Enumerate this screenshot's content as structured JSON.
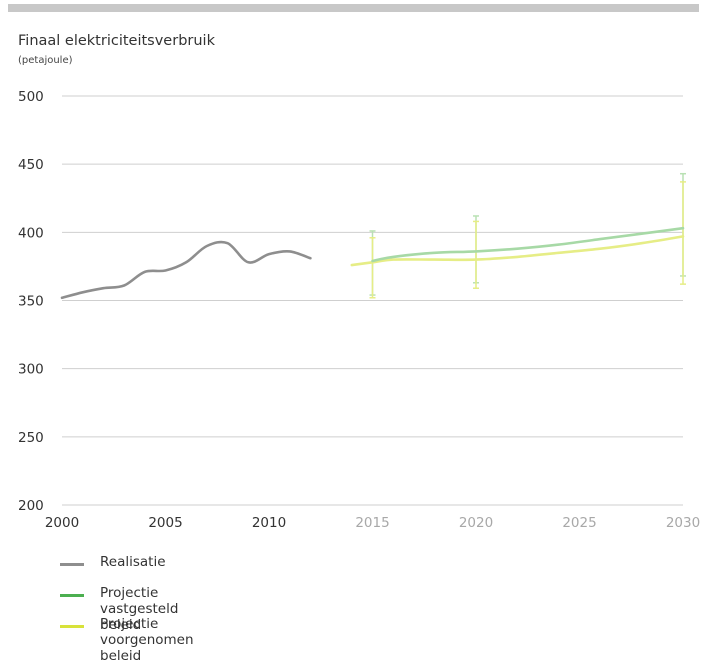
{
  "chart_data": {
    "type": "line",
    "title": "Finaal elektriciteitsverbruik",
    "subtitle": "(petajoule)",
    "ylim": [
      200,
      500
    ],
    "yticks": [
      200,
      250,
      300,
      350,
      400,
      450,
      500
    ],
    "xlim": [
      2000,
      2030
    ],
    "xticks": [
      2000,
      2005,
      2010,
      2015,
      2020,
      2025,
      2030
    ],
    "grid": true,
    "legend_position": "bottom-left",
    "series": [
      {
        "name": "Realisatie",
        "color": "#8e8e8e",
        "x": [
          2000,
          2001,
          2002,
          2003,
          2004,
          2005,
          2006,
          2007,
          2008,
          2009,
          2010,
          2011,
          2012
        ],
        "y": [
          352,
          356,
          359,
          361,
          371,
          372,
          378,
          390,
          392,
          378,
          384,
          386,
          381
        ]
      },
      {
        "name": "Projectie vastgesteld beleid",
        "color": "#a7d9a6",
        "x": [
          2015,
          2016,
          2018,
          2020,
          2022,
          2024,
          2026,
          2028,
          2030
        ],
        "y": [
          379,
          382,
          385,
          386,
          388,
          391,
          395,
          399,
          403
        ]
      },
      {
        "name": "Projectie voorgenomen beleid",
        "color": "#e6ed86",
        "x": [
          2014,
          2015,
          2016,
          2018,
          2020,
          2022,
          2024,
          2026,
          2028,
          2030
        ],
        "y": [
          376,
          378,
          380,
          380,
          380,
          382,
          385,
          388,
          392,
          397
        ]
      }
    ],
    "error_bars": [
      {
        "series": "Projectie vastgesteld beleid",
        "x": 2015,
        "low": 354,
        "high": 401
      },
      {
        "series": "Projectie voorgenomen beleid",
        "x": 2015,
        "low": 352,
        "high": 396
      },
      {
        "series": "Projectie vastgesteld beleid",
        "x": 2020,
        "low": 363,
        "high": 412
      },
      {
        "series": "Projectie voorgenomen beleid",
        "x": 2020,
        "low": 359,
        "high": 408
      },
      {
        "series": "Projectie vastgesteld beleid",
        "x": 2030,
        "low": 368,
        "high": 443
      },
      {
        "series": "Projectie voorgenomen beleid",
        "x": 2030,
        "low": 362,
        "high": 437
      }
    ]
  },
  "colors": {
    "realisatie": "#8e8e8e",
    "vastgesteld": "#4caf50",
    "voorgenomen": "#d8e23a",
    "grid": "#cfcfcf",
    "axis_text_dark": "#333333",
    "axis_text_light": "#a8a8a8"
  },
  "legend": [
    {
      "label": "Realisatie",
      "color": "#8e8e8e"
    },
    {
      "label": "Projectie vastgesteld beleid",
      "color": "#4caf50"
    },
    {
      "label": "Projectie voorgenomen beleid",
      "color": "#d8e23a"
    }
  ]
}
